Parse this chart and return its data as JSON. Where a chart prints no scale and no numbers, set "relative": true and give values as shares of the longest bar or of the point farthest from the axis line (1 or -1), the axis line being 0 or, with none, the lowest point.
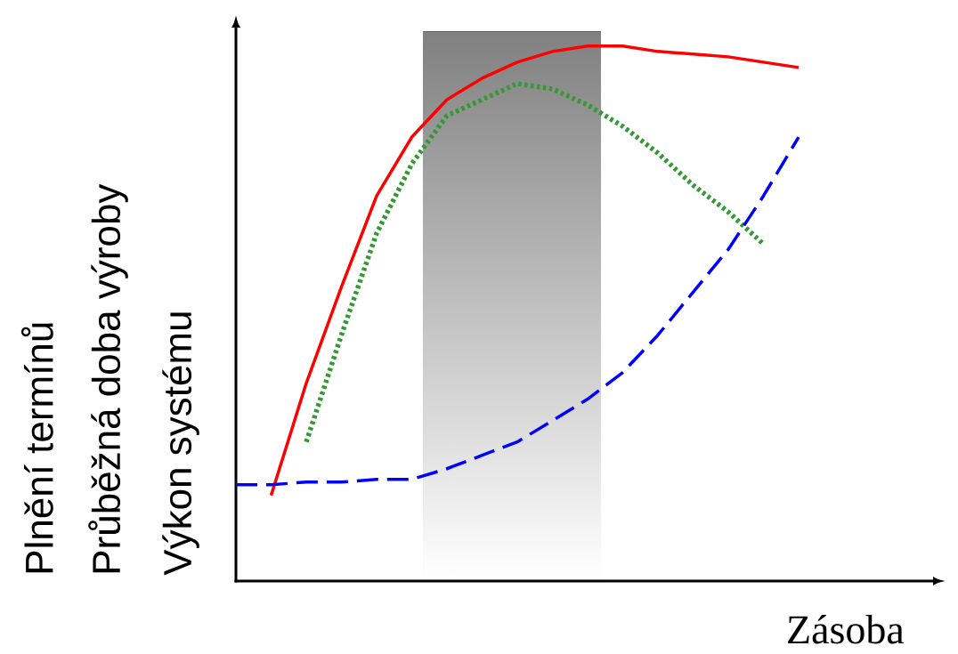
{
  "chart_data": {
    "type": "line",
    "relative": true,
    "xlabel": "Zásoba",
    "ylabel": [
      "Plnění termínů",
      "Průběžná doba výroby",
      "Výkon systému"
    ],
    "categories": [
      null,
      null,
      null,
      null,
      null,
      null,
      null,
      null,
      null,
      null,
      null,
      null,
      null,
      null,
      null,
      null,
      null
    ],
    "series": [
      {
        "color": "#ff0000",
        "line_style": "solid",
        "values": [
          null,
          0.16,
          0.37,
          0.55,
          0.72,
          0.83,
          0.9,
          0.94,
          0.97,
          0.99,
          1.0,
          1.0,
          0.99,
          0.985,
          0.98,
          0.97,
          0.96
        ]
      },
      {
        "color": "#339933",
        "line_style": "dotted",
        "values": [
          null,
          null,
          0.26,
          0.46,
          0.65,
          0.78,
          0.87,
          0.9,
          0.93,
          0.92,
          0.89,
          0.85,
          0.8,
          0.74,
          0.69,
          0.63,
          null
        ]
      },
      {
        "color": "#0000ff",
        "line_style": "dashed",
        "values": [
          0.18,
          0.18,
          0.185,
          0.185,
          0.19,
          0.19,
          0.21,
          0.235,
          0.26,
          0.3,
          0.34,
          0.39,
          0.46,
          0.54,
          0.62,
          0.72,
          0.83
        ]
      }
    ]
  }
}
